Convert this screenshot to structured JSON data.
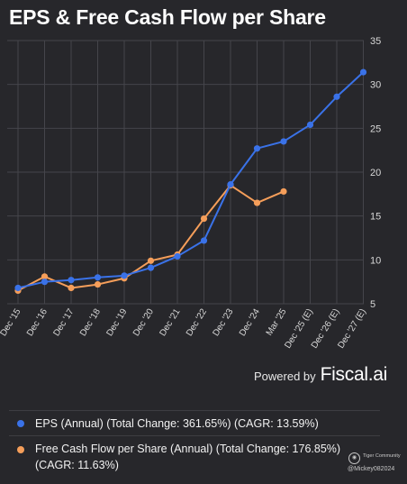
{
  "title": "EPS & Free Cash Flow per Share",
  "powered_by": {
    "label": "Powered by",
    "brand": "Fiscal.ai"
  },
  "legend": [
    {
      "text": "EPS (Annual) (Total Change: 361.65%) (CAGR: 13.59%)",
      "color": "#3a72e8"
    },
    {
      "text": "Free Cash Flow per Share (Annual) (Total Change: 176.85%) (CAGR: 11.63%)",
      "color": "#f59e5a"
    }
  ],
  "watermark": {
    "community": "Tiger Community",
    "user": "@Mickey082024",
    "icon": "tiger-logo-icon"
  },
  "colors": {
    "background": "#27272b",
    "grid": "#45454b",
    "eps": "#3a72e8",
    "fcf": "#f59e5a"
  },
  "chart_data": {
    "type": "line",
    "categories": [
      "Dec '15",
      "Dec '16",
      "Dec '17",
      "Dec '18",
      "Dec '19",
      "Dec '20",
      "Dec '21",
      "Dec '22",
      "Dec '23",
      "Dec '24",
      "Mar '25",
      "Dec '25 (E)",
      "Dec '26 (E)",
      "Dec '27 (E)"
    ],
    "series": [
      {
        "name": "EPS (Annual)",
        "values": [
          6.8,
          7.5,
          7.7,
          8.0,
          8.2,
          9.1,
          10.4,
          12.2,
          18.6,
          22.7,
          23.5,
          25.4,
          28.6,
          31.4
        ]
      },
      {
        "name": "Free Cash Flow per Share (Annual)",
        "values": [
          6.5,
          8.1,
          6.8,
          7.2,
          7.9,
          9.9,
          10.6,
          14.7,
          18.5,
          16.5,
          17.8,
          null,
          null,
          null
        ]
      }
    ],
    "yticks": [
      5,
      10,
      15,
      20,
      25,
      30,
      35
    ],
    "ylim": [
      5,
      35
    ],
    "y_axis_position": "right",
    "grid": true,
    "legend_position": "bottom"
  }
}
